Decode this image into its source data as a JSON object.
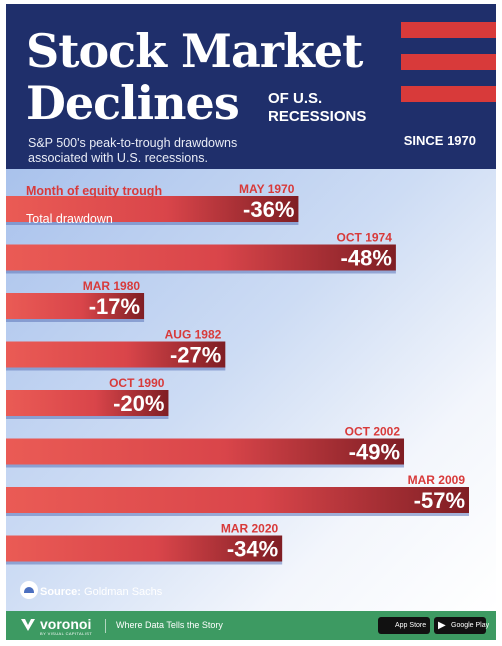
{
  "header": {
    "title_line1": "Stock Market",
    "title_line2": "Declines",
    "title_line3": "OF U.S.\nRECESSIONS",
    "subtitle": "S&P 500's peak-to-trough drawdowns associated with U.S. recessions.",
    "since": "SINCE 1970"
  },
  "legend": {
    "month_label": "Month of equity trough",
    "drawdown_label": "Total drawdown"
  },
  "colors": {
    "navy": "#1f2f6b",
    "bar_light": "#ea5b55",
    "bar_dark": "#7f1e24",
    "month_red": "#d83a3a",
    "footer_green": "#3d9a62"
  },
  "chart_data": {
    "type": "bar",
    "orientation": "horizontal",
    "categories": [
      "MAY 1970",
      "OCT 1974",
      "MAR 1980",
      "AUG 1982",
      "OCT 1990",
      "OCT 2002",
      "MAR 2009",
      "MAR 2020"
    ],
    "values": [
      -36,
      -48,
      -17,
      -27,
      -20,
      -49,
      -57,
      -34
    ],
    "value_labels": [
      "-36%",
      "-48%",
      "-17%",
      "-27%",
      "-20%",
      "-49%",
      "-57%",
      "-34%"
    ],
    "title": "Stock Market Declines of U.S. Recessions",
    "xlabel": "",
    "ylabel": "",
    "xlim": [
      0,
      57
    ],
    "grid": false
  },
  "source": {
    "label": "Source:",
    "value": "Goldman Sachs"
  },
  "footer": {
    "brand": "voronoi",
    "brand_sub": "BY VISUAL CAPITALIST",
    "tagline": "Where Data Tells the Story",
    "app_store": "App Store",
    "google_play": "Google Play"
  }
}
